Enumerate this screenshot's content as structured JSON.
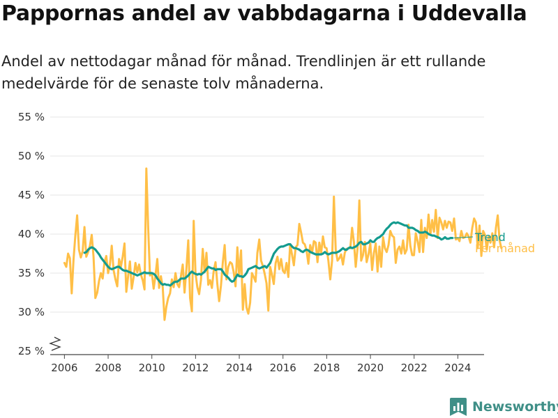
{
  "header": {
    "title": "Pappornas andel av vabbdagarna i Uddevalla",
    "subtitle": "Andel av nettodagar månad för månad. Trendlinjen är ett rullande medelvärde för de senaste tolv månaderna."
  },
  "brand": {
    "name": "Newsworthy",
    "color": "#3f8f87",
    "icon": "bar-chart-icon"
  },
  "chart_data": {
    "type": "line",
    "title": "",
    "xlabel": "",
    "ylabel": "",
    "xlim": [
      2005.35,
      2025.2
    ],
    "ylim": [
      25,
      55
    ],
    "y_ticks": [
      25,
      30,
      35,
      40,
      45,
      50,
      55
    ],
    "y_tick_labels": [
      "25 %",
      "30 %",
      "35 %",
      "40 %",
      "45 %",
      "50 %",
      "55 %"
    ],
    "x_ticks": [
      2006,
      2008,
      2010,
      2012,
      2014,
      2016,
      2018,
      2020,
      2022,
      2024
    ],
    "x_tick_labels": [
      "2006",
      "2008",
      "2010",
      "2012",
      "2014",
      "2016",
      "2018",
      "2020",
      "2022",
      "2024"
    ],
    "axis_break": true,
    "grid": "horizontal",
    "legend": "right-end-labels",
    "series": [
      {
        "name": "Per månad",
        "color": "#ffbf47",
        "x_start": 2006.0,
        "step": 0.0833,
        "values": [
          36.3,
          35.8,
          37.5,
          36.9,
          32.4,
          36.7,
          39.8,
          42.4,
          38.0,
          37.0,
          37.8,
          40.9,
          37.1,
          37.7,
          38.5,
          39.9,
          37.1,
          31.8,
          32.5,
          34.0,
          35.0,
          34.3,
          36.4,
          37.2,
          35.0,
          36.1,
          38.5,
          35.4,
          34.2,
          33.3,
          36.8,
          35.8,
          37.1,
          38.8,
          32.6,
          34.6,
          36.5,
          33.0,
          34.5,
          36.3,
          35.1,
          36.1,
          34.8,
          34.1,
          32.9,
          48.4,
          40.9,
          34.7,
          35.0,
          33.0,
          34.7,
          36.8,
          33.1,
          34.6,
          33.2,
          29.0,
          30.7,
          31.8,
          32.4,
          34.2,
          33.2,
          35.0,
          33.6,
          33.2,
          34.6,
          36.1,
          32.5,
          35.6,
          39.2,
          31.8,
          30.1,
          41.7,
          35.0,
          33.2,
          32.3,
          34.1,
          38.1,
          35.1,
          37.6,
          33.5,
          34.1,
          33.1,
          35.3,
          36.4,
          33.6,
          31.4,
          33.4,
          36.4,
          38.6,
          34.2,
          35.8,
          36.4,
          36.2,
          35.1,
          33.3,
          38.3,
          34.6,
          37.9,
          30.3,
          33.6,
          30.6,
          29.8,
          31.2,
          35.0,
          34.5,
          33.9,
          37.6,
          39.3,
          36.6,
          35.9,
          34.9,
          33.7,
          30.2,
          35.8,
          34.8,
          33.6,
          36.3,
          37.1,
          35.5,
          36.8,
          35.3,
          35.0,
          36.3,
          34.5,
          38.7,
          37.4,
          36.0,
          38.3,
          38.6,
          41.3,
          40.2,
          38.9,
          38.7,
          37.9,
          36.2,
          38.6,
          37.6,
          39.1,
          38.9,
          36.4,
          38.9,
          37.5,
          39.7,
          38.3,
          38.2,
          36.6,
          34.2,
          36.6,
          44.8,
          38.0,
          36.6,
          36.9,
          37.4,
          36.1,
          37.6,
          38.1,
          38.2,
          38.2,
          40.8,
          39.0,
          35.8,
          38.2,
          44.3,
          36.6,
          37.3,
          39.0,
          36.4,
          37.4,
          38.8,
          35.4,
          37.6,
          38.8,
          35.2,
          38.4,
          35.8,
          39.6,
          38.2,
          37.7,
          38.6,
          40.4,
          39.8,
          39.6,
          36.3,
          38.0,
          38.4,
          37.5,
          39.2,
          37.5,
          38.0,
          41.2,
          38.5,
          37.3,
          37.3,
          40.1,
          39.1,
          37.7,
          41.8,
          37.7,
          40.8,
          39.5,
          42.5,
          39.9,
          41.8,
          40.3,
          43.1,
          39.5,
          42.1,
          41.5,
          40.6,
          41.7,
          40.8,
          41.6,
          41.5,
          40.4,
          42.0,
          39.3,
          39.5,
          39.1,
          40.4,
          39.5,
          39.6,
          40.1,
          39.7,
          38.9,
          40.8,
          42.0,
          41.5,
          38.2,
          41.1,
          37.2,
          40.4,
          39.9,
          38.0,
          39.7,
          38.9,
          40.1,
          38.3,
          40.8,
          42.4,
          39.2,
          38.2
        ]
      },
      {
        "name": "Trend",
        "color": "#149b8f",
        "x_start": 2006.92,
        "step": 0.0833,
        "values": [
          37.6,
          37.7,
          38.0,
          38.2,
          38.3,
          38.2,
          38.0,
          37.7,
          37.4,
          37.0,
          36.7,
          36.4,
          36.1,
          35.8,
          35.6,
          35.5,
          35.6,
          35.7,
          35.8,
          35.8,
          35.6,
          35.4,
          35.3,
          35.3,
          35.2,
          35.1,
          35.0,
          34.9,
          34.8,
          34.7,
          34.8,
          34.9,
          35.0,
          35.1,
          35.0,
          35.0,
          35.0,
          35.0,
          34.9,
          34.7,
          34.3,
          34.0,
          33.7,
          33.5,
          33.6,
          33.5,
          33.5,
          33.4,
          33.6,
          33.8,
          33.9,
          33.9,
          34.1,
          34.3,
          34.3,
          34.3,
          34.5,
          34.7,
          35.0,
          35.2,
          35.0,
          34.9,
          34.8,
          34.9,
          34.8,
          35.0,
          35.2,
          35.5,
          35.8,
          35.7,
          35.6,
          35.6,
          35.4,
          35.5,
          35.5,
          35.5,
          35.2,
          34.8,
          34.6,
          34.4,
          34.1,
          33.9,
          34.0,
          34.4,
          34.8,
          34.6,
          34.6,
          34.5,
          34.7,
          35.0,
          35.5,
          35.6,
          35.7,
          35.8,
          35.9,
          35.7,
          35.6,
          35.7,
          35.8,
          35.9,
          35.7,
          36.0,
          36.3,
          36.9,
          37.5,
          37.8,
          38.1,
          38.3,
          38.4,
          38.4,
          38.5,
          38.6,
          38.7,
          38.7,
          38.4,
          38.2,
          38.2,
          38.1,
          38.0,
          37.8,
          37.7,
          37.9,
          38.0,
          37.9,
          37.7,
          37.6,
          37.5,
          37.4,
          37.4,
          37.4,
          37.4,
          37.5,
          37.7,
          37.5,
          37.4,
          37.5,
          37.6,
          37.6,
          37.6,
          37.7,
          37.8,
          38.0,
          38.2,
          38.0,
          38.0,
          38.2,
          38.3,
          38.2,
          38.3,
          38.4,
          38.6,
          38.9,
          39.0,
          38.7,
          38.7,
          38.8,
          38.9,
          39.2,
          39.0,
          39.0,
          39.3,
          39.5,
          39.6,
          39.8,
          40.0,
          40.4,
          40.7,
          40.9,
          41.2,
          41.4,
          41.5,
          41.4,
          41.5,
          41.4,
          41.3,
          41.2,
          41.1,
          41.1,
          40.8,
          40.8,
          40.8,
          40.7,
          40.5,
          40.4,
          40.2,
          40.2,
          40.2,
          40.3,
          40.2,
          40.0,
          39.9,
          39.8,
          39.8,
          39.7,
          39.6,
          39.5,
          39.3,
          39.4,
          39.6,
          39.4,
          39.4,
          39.5,
          39.5
        ]
      }
    ]
  }
}
